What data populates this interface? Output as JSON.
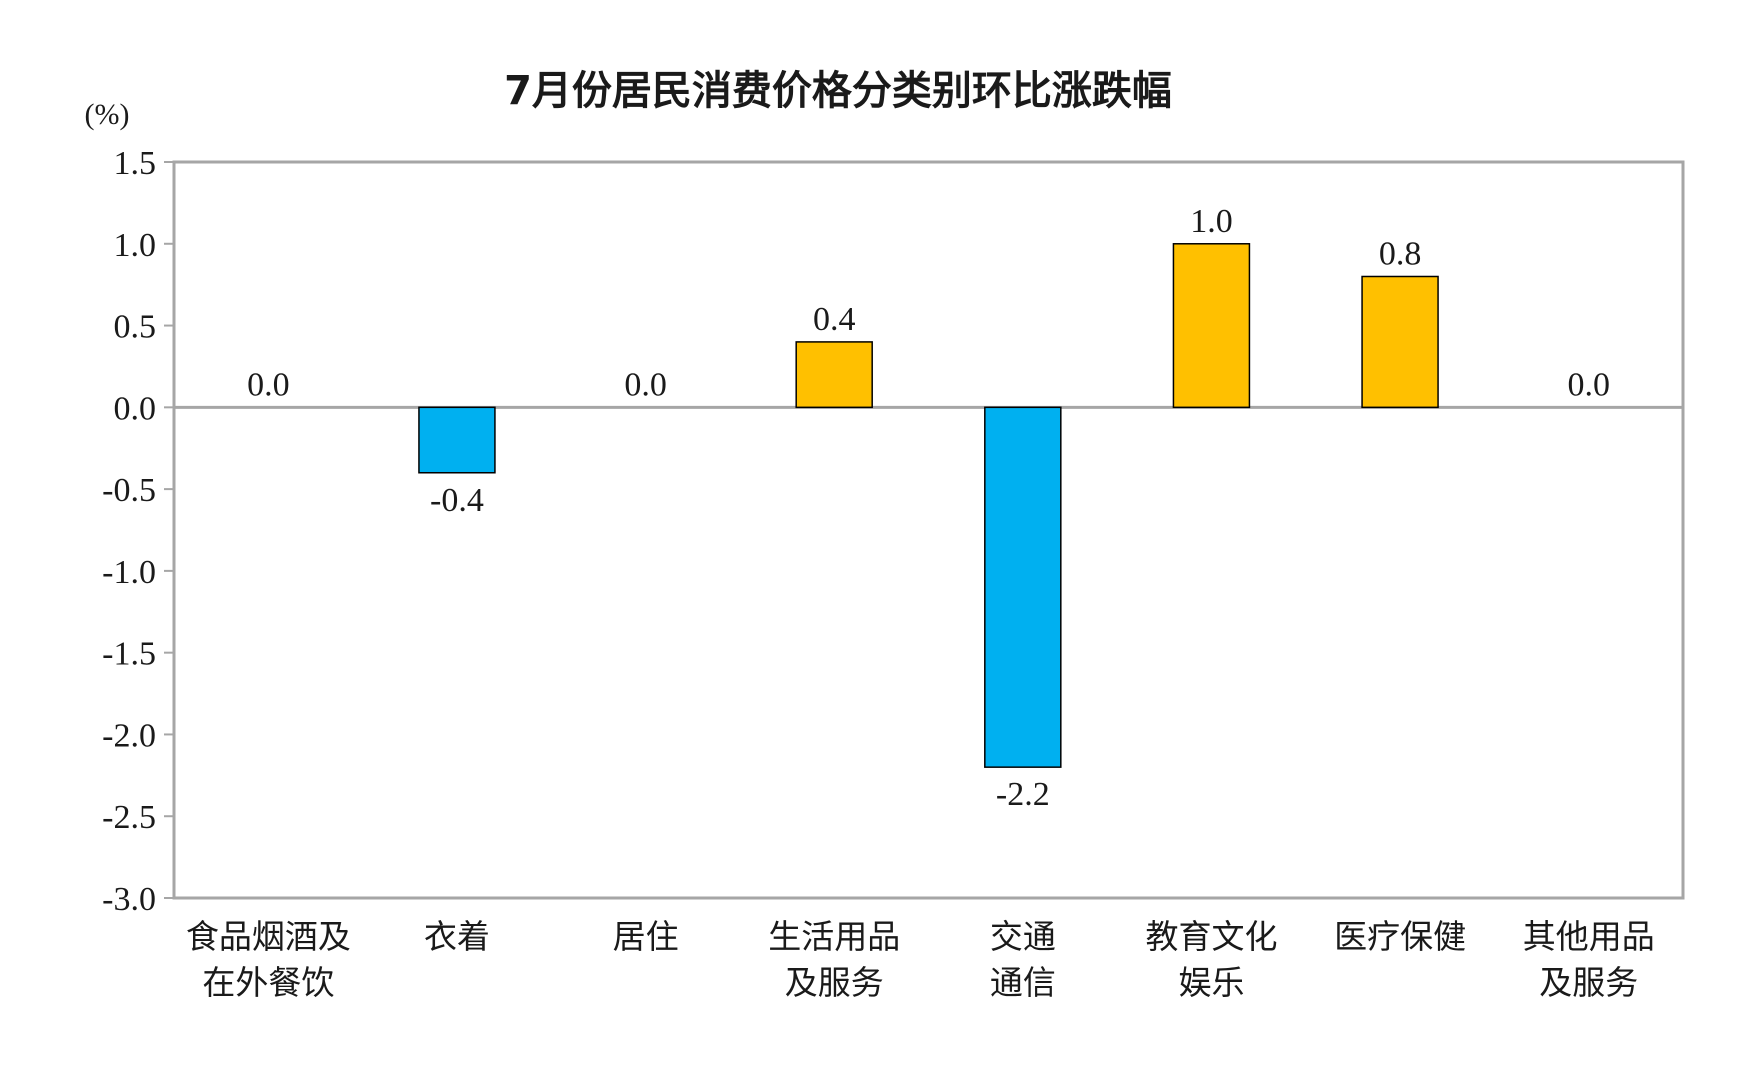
{
  "chart_data": {
    "type": "bar",
    "title": "7月份居民消费价格分类别环比涨跌幅",
    "unit_label": "(%)",
    "xlabel": "",
    "ylabel": "",
    "categories": [
      [
        "食品烟酒及",
        "在外餐饮"
      ],
      [
        "衣着"
      ],
      [
        "居住"
      ],
      [
        "生活用品",
        "及服务"
      ],
      [
        "交通",
        "通信"
      ],
      [
        "教育文化",
        "娱乐"
      ],
      [
        "医疗保健"
      ],
      [
        "其他用品",
        "及服务"
      ]
    ],
    "values": [
      0.0,
      -0.4,
      0.0,
      0.4,
      -2.2,
      1.0,
      0.8,
      0.0
    ],
    "data_labels": [
      "0.0",
      "-0.4",
      "0.0",
      "0.4",
      "-2.2",
      "1.0",
      "0.8",
      "0.0"
    ],
    "ylim": [
      -3.0,
      1.5
    ],
    "yticks": [
      1.5,
      1.0,
      0.5,
      0.0,
      -0.5,
      -1.0,
      -1.5,
      -2.0,
      -2.5,
      -3.0
    ],
    "ytick_labels": [
      "1.5",
      "1.0",
      "0.5",
      "0.0",
      "-0.5",
      "-1.0",
      "-1.5",
      "-2.0",
      "-2.5",
      "-3.0"
    ],
    "grid": false,
    "legend": "none",
    "colors": {
      "positive": "#FFC000",
      "negative": "#00B0F0",
      "bar_edge": "#000000",
      "frame": "#A6A6A6",
      "zero_line": "#A6A6A6"
    }
  }
}
